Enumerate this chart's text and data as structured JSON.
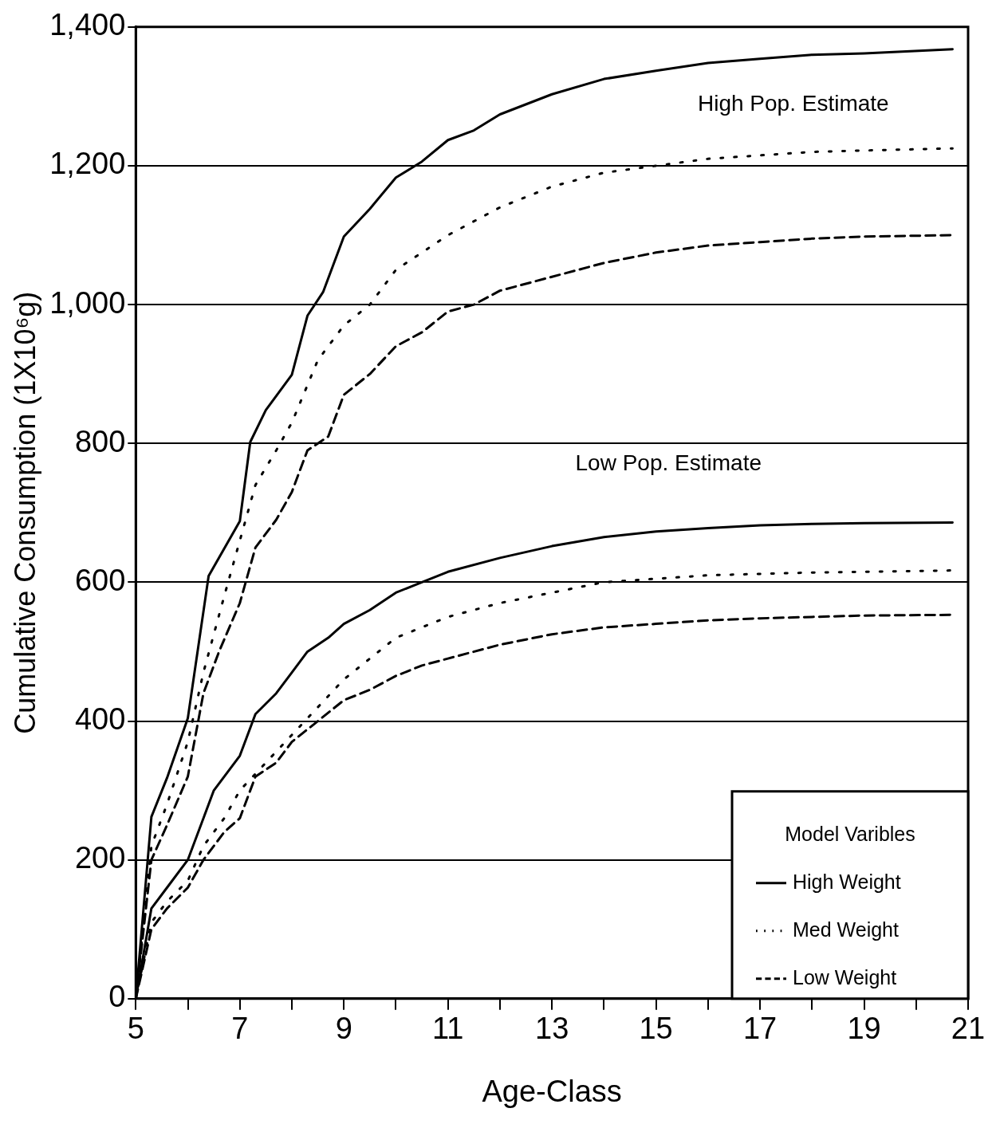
{
  "chart_data": {
    "type": "line",
    "xlabel": "Age-Class",
    "ylabel": "Cumulative Consumption (1X10⁶g)",
    "legend_title": "Model Varibles",
    "legend": "bottom right",
    "grid": "y",
    "marker": "none",
    "annotations": [
      "High Pop. Estimate",
      "Low Pop. Estimate"
    ],
    "xlim": [
      5,
      21
    ],
    "xticks": [
      5,
      {
        "value": 6,
        "label": null
      },
      7,
      {
        "value": 8,
        "label": null
      },
      9,
      {
        "value": 10,
        "label": null
      },
      11,
      {
        "value": 12,
        "label": null
      },
      13,
      {
        "value": 14,
        "label": null
      },
      15,
      {
        "value": 16,
        "label": null
      },
      17,
      {
        "value": 18,
        "label": null
      },
      19,
      {
        "value": 20,
        "label": null
      },
      21
    ],
    "ylim": [
      0,
      1400
    ],
    "yticks": [
      {
        "value": 0,
        "label": "0"
      },
      {
        "value": 200,
        "label": "200"
      },
      {
        "value": 400,
        "label": "400"
      },
      {
        "value": 600,
        "label": "600"
      },
      {
        "value": 800,
        "label": "800"
      },
      {
        "value": 1000,
        "label": "1,000"
      },
      {
        "value": 1200,
        "label": "1,200"
      },
      {
        "value": 1400,
        "label": "1,400"
      }
    ],
    "series": [
      {
        "name": "High Weight",
        "color": "#000000",
        "line_style": "solid",
        "x": [
          5,
          5.3,
          5.6,
          6,
          6.4,
          7,
          7.2,
          7.5,
          8,
          8.3,
          8.6,
          9,
          9.5,
          10,
          10.5,
          11,
          11.5,
          12,
          13,
          14,
          15,
          16,
          17,
          18,
          19,
          20.7
        ],
        "values": [
          0,
          262,
          318,
          404,
          609,
          688,
          802,
          848,
          899,
          984,
          1018,
          1098,
          1138,
          1183,
          1206,
          1237,
          1251,
          1274,
          1303,
          1325,
          1337,
          1348,
          1354,
          1360,
          1362,
          1368
        ]
      },
      {
        "name": "Med Weight",
        "color": "#000000",
        "line_style": "dotted",
        "x": [
          5,
          5.3,
          5.6,
          6,
          6.3,
          6.7,
          7,
          7.3,
          7.7,
          8,
          8.5,
          9,
          9.5,
          10,
          11,
          12,
          13,
          14,
          15,
          16,
          17,
          18,
          19,
          20.7
        ],
        "values": [
          0,
          220,
          280,
          370,
          470,
          580,
          660,
          740,
          790,
          830,
          920,
          970,
          1000,
          1050,
          1100,
          1140,
          1170,
          1190,
          1200,
          1210,
          1215,
          1220,
          1222,
          1225
        ]
      },
      {
        "name": "Low Weight",
        "color": "#000000",
        "line_style": "dashed",
        "x": [
          5,
          5.3,
          5.6,
          6,
          6.3,
          6.6,
          7,
          7.3,
          7.7,
          8,
          8.3,
          8.7,
          9,
          9.5,
          10,
          10.5,
          11,
          11.5,
          12,
          13,
          14,
          15,
          16,
          17,
          18,
          19,
          20.7
        ],
        "values": [
          0,
          200,
          250,
          320,
          440,
          500,
          570,
          650,
          690,
          730,
          790,
          810,
          870,
          900,
          940,
          960,
          990,
          1000,
          1020,
          1040,
          1060,
          1075,
          1085,
          1090,
          1095,
          1098,
          1100
        ]
      },
      {
        "color": "#000000",
        "line_style": "solid",
        "x": [
          5,
          5.3,
          5.6,
          6,
          6.3,
          6.5,
          7,
          7.3,
          7.7,
          8,
          8.3,
          8.7,
          9,
          9.5,
          10,
          10.5,
          11,
          12,
          13,
          14,
          15,
          16,
          17,
          18,
          19,
          20.7
        ],
        "values": [
          0,
          130,
          160,
          200,
          260,
          300,
          350,
          410,
          440,
          470,
          500,
          520,
          540,
          560,
          585,
          600,
          615,
          635,
          652,
          665,
          673,
          678,
          682,
          684,
          685,
          686
        ]
      },
      {
        "color": "#000000",
        "line_style": "dotted",
        "x": [
          5,
          5.3,
          5.6,
          6,
          6.3,
          6.7,
          7,
          7.5,
          8,
          8.5,
          9,
          9.5,
          10,
          11,
          12,
          13,
          14,
          15,
          16,
          17,
          18,
          19,
          20.7
        ],
        "values": [
          0,
          110,
          140,
          170,
          220,
          260,
          300,
          340,
          380,
          420,
          460,
          490,
          520,
          550,
          570,
          585,
          600,
          605,
          610,
          612,
          614,
          615,
          617
        ]
      },
      {
        "color": "#000000",
        "line_style": "dashed",
        "x": [
          5,
          5.3,
          5.6,
          6,
          6.3,
          6.7,
          7,
          7.3,
          7.7,
          8,
          8.5,
          9,
          9.5,
          10,
          10.5,
          11,
          12,
          13,
          14,
          15,
          16,
          17,
          18,
          19,
          20.7
        ],
        "values": [
          0,
          100,
          130,
          160,
          200,
          240,
          260,
          320,
          340,
          370,
          400,
          430,
          445,
          465,
          480,
          490,
          510,
          525,
          535,
          540,
          545,
          548,
          550,
          552,
          553
        ]
      }
    ]
  }
}
